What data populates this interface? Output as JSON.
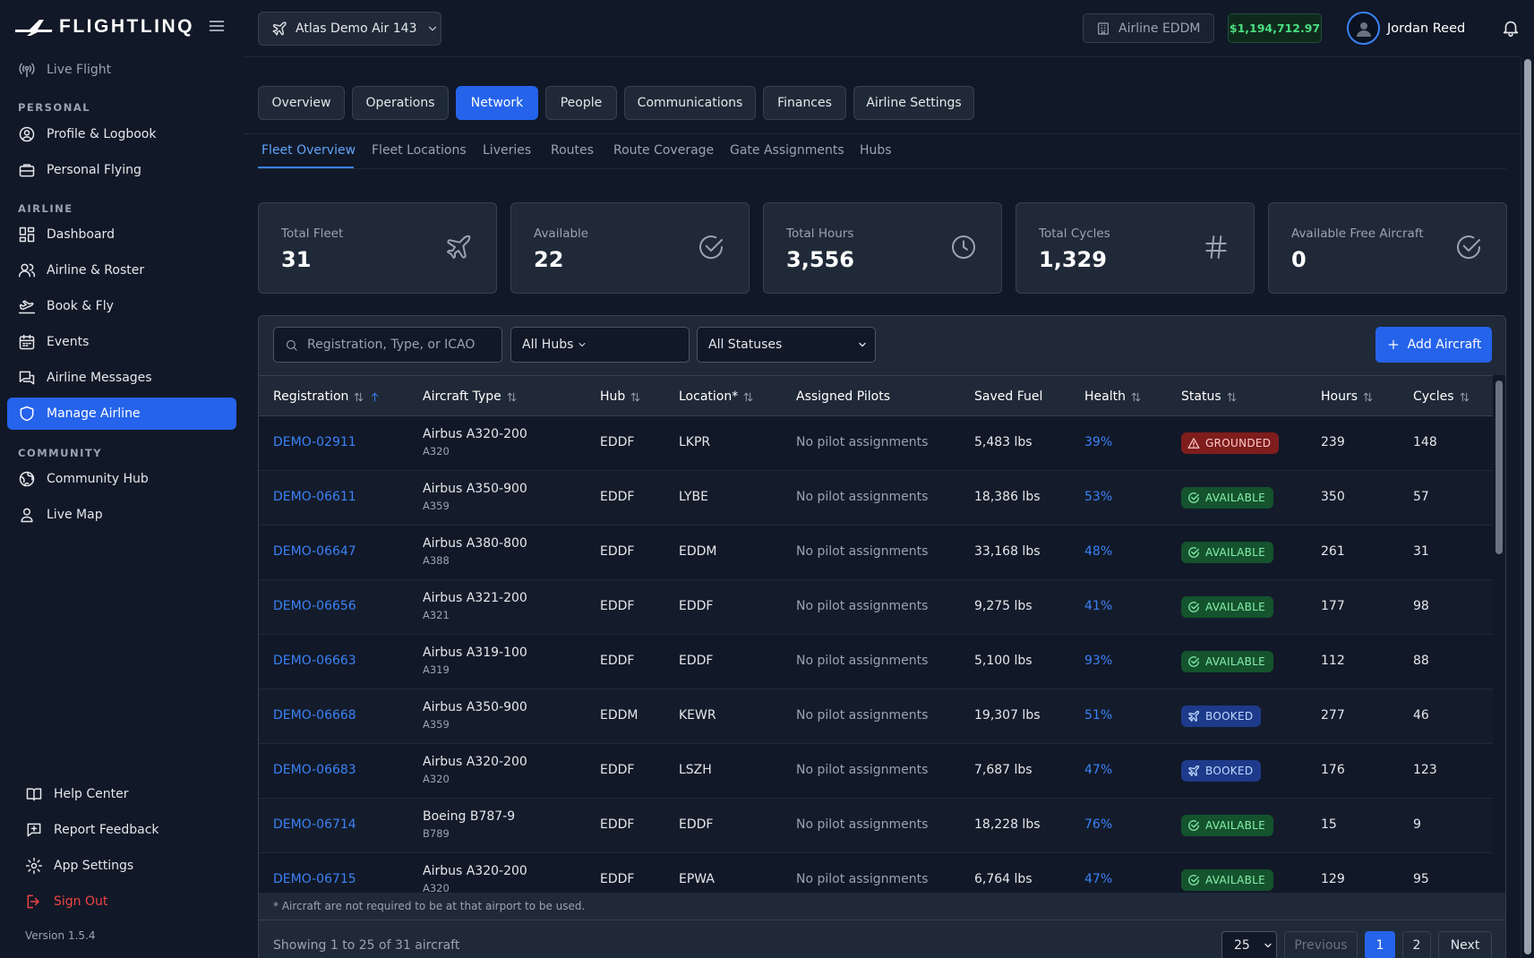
{
  "app": {
    "name": "FLIGHTLINQ",
    "version": "Version 1.5.4"
  },
  "sidebar": {
    "live_flight": "Live Flight",
    "sections": {
      "personal": "PERSONAL",
      "airline": "AIRLINE",
      "community": "COMMUNITY"
    },
    "personal": [
      {
        "label": "Profile & Logbook",
        "icon": "user-circle-icon"
      },
      {
        "label": "Personal Flying",
        "icon": "briefcase-icon"
      }
    ],
    "airline": [
      {
        "label": "Dashboard",
        "icon": "dashboard-icon"
      },
      {
        "label": "Airline & Roster",
        "icon": "users-icon"
      },
      {
        "label": "Book & Fly",
        "icon": "plane-takeoff-icon"
      },
      {
        "label": "Events",
        "icon": "calendar-icon"
      },
      {
        "label": "Airline Messages",
        "icon": "messages-icon"
      },
      {
        "label": "Manage Airline",
        "icon": "shield-icon",
        "active": true
      }
    ],
    "community": [
      {
        "label": "Community Hub",
        "icon": "globe-icon"
      },
      {
        "label": "Live Map",
        "icon": "map-pin-icon"
      }
    ],
    "bottom": [
      {
        "label": "Help Center",
        "icon": "book-icon"
      },
      {
        "label": "Report Feedback",
        "icon": "feedback-icon"
      },
      {
        "label": "App Settings",
        "icon": "gear-icon"
      },
      {
        "label": "Sign Out",
        "icon": "sign-out-icon"
      }
    ]
  },
  "topbar": {
    "airline_selector": "Atlas Demo Air 143",
    "airline_badge": "Airline EDDM",
    "balance": "$1,194,712.97",
    "user_name": "Jordan Reed"
  },
  "tabs": [
    {
      "label": "Overview"
    },
    {
      "label": "Operations"
    },
    {
      "label": "Network",
      "active": true
    },
    {
      "label": "People"
    },
    {
      "label": "Communications"
    },
    {
      "label": "Finances"
    },
    {
      "label": "Airline Settings"
    }
  ],
  "subtabs": [
    {
      "label": "Fleet Overview",
      "active": true
    },
    {
      "label": "Fleet Locations"
    },
    {
      "label": "Liveries"
    },
    {
      "label": "Routes"
    },
    {
      "label": "Route Coverage"
    },
    {
      "label": "Gate Assignments"
    },
    {
      "label": "Hubs"
    }
  ],
  "stats": [
    {
      "label": "Total Fleet",
      "value": "31",
      "icon": "plane-icon"
    },
    {
      "label": "Available",
      "value": "22",
      "icon": "check-circle-icon"
    },
    {
      "label": "Total Hours",
      "value": "3,556",
      "icon": "clock-icon"
    },
    {
      "label": "Total Cycles",
      "value": "1,329",
      "icon": "hash-icon"
    },
    {
      "label": "Available Free Aircraft",
      "value": "0",
      "icon": "check-circle-icon"
    }
  ],
  "filters": {
    "search_placeholder": "Registration, Type, or ICAO",
    "hub": "All Hubs",
    "status": "All Statuses",
    "add_button": "Add Aircraft"
  },
  "table": {
    "columns": [
      "Registration",
      "Aircraft Type",
      "Hub",
      "Location*",
      "Assigned Pilots",
      "Saved Fuel",
      "Health",
      "Status",
      "Hours",
      "Cycles"
    ],
    "rows": [
      {
        "reg": "DEMO-02911",
        "type": "Airbus A320-200",
        "icao": "A320",
        "hub": "EDDF",
        "location": "LKPR",
        "pilots": "No pilot assignments",
        "fuel": "5,483 lbs",
        "health": "39%",
        "status": "GROUNDED",
        "status_kind": "grounded",
        "hours": "239",
        "cycles": "148"
      },
      {
        "reg": "DEMO-06611",
        "type": "Airbus A350-900",
        "icao": "A359",
        "hub": "EDDF",
        "location": "LYBE",
        "pilots": "No pilot assignments",
        "fuel": "18,386 lbs",
        "health": "53%",
        "status": "AVAILABLE",
        "status_kind": "available",
        "hours": "350",
        "cycles": "57"
      },
      {
        "reg": "DEMO-06647",
        "type": "Airbus A380-800",
        "icao": "A388",
        "hub": "EDDF",
        "location": "EDDM",
        "pilots": "No pilot assignments",
        "fuel": "33,168 lbs",
        "health": "48%",
        "status": "AVAILABLE",
        "status_kind": "available",
        "hours": "261",
        "cycles": "31"
      },
      {
        "reg": "DEMO-06656",
        "type": "Airbus A321-200",
        "icao": "A321",
        "hub": "EDDF",
        "location": "EDDF",
        "pilots": "No pilot assignments",
        "fuel": "9,275 lbs",
        "health": "41%",
        "status": "AVAILABLE",
        "status_kind": "available",
        "hours": "177",
        "cycles": "98"
      },
      {
        "reg": "DEMO-06663",
        "type": "Airbus A319-100",
        "icao": "A319",
        "hub": "EDDF",
        "location": "EDDF",
        "pilots": "No pilot assignments",
        "fuel": "5,100 lbs",
        "health": "93%",
        "status": "AVAILABLE",
        "status_kind": "available",
        "hours": "112",
        "cycles": "88"
      },
      {
        "reg": "DEMO-06668",
        "type": "Airbus A350-900",
        "icao": "A359",
        "hub": "EDDM",
        "location": "KEWR",
        "pilots": "No pilot assignments",
        "fuel": "19,307 lbs",
        "health": "51%",
        "status": "BOOKED",
        "status_kind": "booked",
        "hours": "277",
        "cycles": "46"
      },
      {
        "reg": "DEMO-06683",
        "type": "Airbus A320-200",
        "icao": "A320",
        "hub": "EDDF",
        "location": "LSZH",
        "pilots": "No pilot assignments",
        "fuel": "7,687 lbs",
        "health": "47%",
        "status": "BOOKED",
        "status_kind": "booked",
        "hours": "176",
        "cycles": "123"
      },
      {
        "reg": "DEMO-06714",
        "type": "Boeing B787-9",
        "icao": "B789",
        "hub": "EDDF",
        "location": "EDDF",
        "pilots": "No pilot assignments",
        "fuel": "18,228 lbs",
        "health": "76%",
        "status": "AVAILABLE",
        "status_kind": "available",
        "hours": "15",
        "cycles": "9"
      },
      {
        "reg": "DEMO-06715",
        "type": "Airbus A320-200",
        "icao": "A320",
        "hub": "EDDF",
        "location": "EPWA",
        "pilots": "No pilot assignments",
        "fuel": "6,764 lbs",
        "health": "47%",
        "status": "AVAILABLE",
        "status_kind": "available",
        "hours": "129",
        "cycles": "95"
      }
    ],
    "footnote": "* Aircraft are not required to be at that airport to be used."
  },
  "pagination": {
    "showing": "Showing 1 to 25 of 31 aircraft",
    "page_size": "25",
    "previous": "Previous",
    "pages": [
      "1",
      "2"
    ],
    "next": "Next"
  },
  "colors": {
    "accent": "#2563eb",
    "available": "#86efac",
    "grounded": "#fecaca",
    "booked": "#bfdbfe",
    "balance": "#4ade80"
  }
}
